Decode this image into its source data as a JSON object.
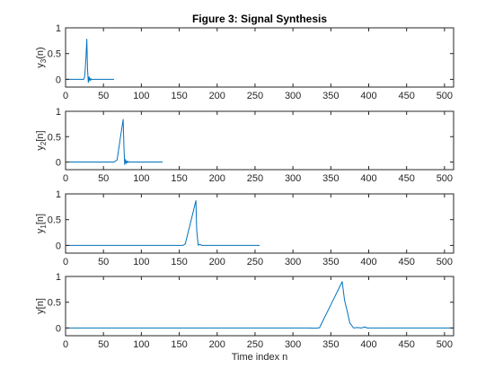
{
  "figure": {
    "title": "Figure 3: Signal Synthesis",
    "xlabel": "Time index n",
    "line_color": "#0072BD",
    "axis_color": "#262626"
  },
  "chart_data": [
    {
      "type": "line",
      "ylabel": "y3(n)",
      "ylabel_main": "y",
      "ylabel_sub": "3",
      "ylabel_suffix": "(n)",
      "xlim": [
        0,
        512
      ],
      "ylim": [
        -0.15,
        1
      ],
      "xticks": [
        0,
        50,
        100,
        150,
        200,
        250,
        300,
        350,
        400,
        450,
        500
      ],
      "xticklabels": [
        "0",
        "50",
        "100",
        "150",
        "200",
        "250",
        "300",
        "350",
        "400",
        "450",
        "500"
      ],
      "yticks": [
        0,
        0.5,
        1
      ],
      "yticklabels": [
        "0",
        "0.5",
        "1"
      ],
      "series": [
        {
          "x": [
            0,
            24,
            25,
            26,
            27,
            28,
            29,
            30,
            31,
            32,
            33,
            34,
            35,
            36,
            40,
            64
          ],
          "y": [
            0,
            0,
            0.04,
            0.2,
            0.45,
            0.78,
            0.2,
            -0.06,
            0.05,
            -0.03,
            0.02,
            -0.01,
            0,
            0,
            0,
            0
          ]
        }
      ]
    },
    {
      "type": "line",
      "ylabel": "y2[n]",
      "ylabel_main": "y",
      "ylabel_sub": "2",
      "ylabel_suffix": "[n]",
      "xlim": [
        0,
        512
      ],
      "ylim": [
        -0.15,
        1
      ],
      "xticks": [
        0,
        50,
        100,
        150,
        200,
        250,
        300,
        350,
        400,
        450,
        500
      ],
      "xticklabels": [
        "0",
        "50",
        "100",
        "150",
        "200",
        "250",
        "300",
        "350",
        "400",
        "450",
        "500"
      ],
      "yticks": [
        0,
        0.5,
        1
      ],
      "yticklabels": [
        "0",
        "0.5",
        "1"
      ],
      "series": [
        {
          "x": [
            0,
            64,
            68,
            72,
            76,
            77,
            78,
            79,
            80,
            81,
            82,
            83,
            84,
            90,
            128
          ],
          "y": [
            0,
            0,
            0.04,
            0.45,
            0.84,
            0.3,
            -0.05,
            0.05,
            -0.03,
            0.02,
            -0.01,
            0.01,
            0,
            0,
            0
          ]
        }
      ]
    },
    {
      "type": "line",
      "ylabel": "y1[n]",
      "ylabel_main": "y",
      "ylabel_sub": "1",
      "ylabel_suffix": "[n]",
      "xlim": [
        0,
        512
      ],
      "ylim": [
        -0.15,
        1
      ],
      "xticks": [
        0,
        50,
        100,
        150,
        200,
        250,
        300,
        350,
        400,
        450,
        500
      ],
      "xticklabels": [
        "0",
        "50",
        "100",
        "150",
        "200",
        "250",
        "300",
        "350",
        "400",
        "450",
        "500"
      ],
      "yticks": [
        0,
        0.5,
        1
      ],
      "yticklabels": [
        "0",
        "0.5",
        "1"
      ],
      "series": [
        {
          "x": [
            0,
            155,
            158,
            165,
            172,
            173,
            175,
            177,
            180,
            185,
            256
          ],
          "y": [
            0,
            0,
            0.03,
            0.45,
            0.87,
            0.3,
            0,
            0.02,
            0,
            0,
            0
          ]
        }
      ]
    },
    {
      "type": "line",
      "ylabel": "y[n]",
      "ylabel_main": "y[n]",
      "ylabel_sub": "",
      "ylabel_suffix": "",
      "xlim": [
        0,
        512
      ],
      "ylim": [
        -0.15,
        1
      ],
      "xticks": [
        0,
        50,
        100,
        150,
        200,
        250,
        300,
        350,
        400,
        450,
        500
      ],
      "xticklabels": [
        "0",
        "50",
        "100",
        "150",
        "200",
        "250",
        "300",
        "350",
        "400",
        "450",
        "500"
      ],
      "yticks": [
        0,
        0.5,
        1
      ],
      "yticklabels": [
        "0",
        "0.5",
        "1"
      ],
      "series": [
        {
          "x": [
            0,
            320,
            330,
            335,
            350,
            365,
            368,
            372,
            375,
            380,
            385,
            390,
            395,
            398,
            400,
            512
          ],
          "y": [
            0,
            0,
            -0.005,
            0.005,
            0.45,
            0.9,
            0.55,
            0.3,
            0.1,
            0,
            0.01,
            0,
            0.02,
            0,
            0,
            0
          ]
        }
      ]
    }
  ]
}
